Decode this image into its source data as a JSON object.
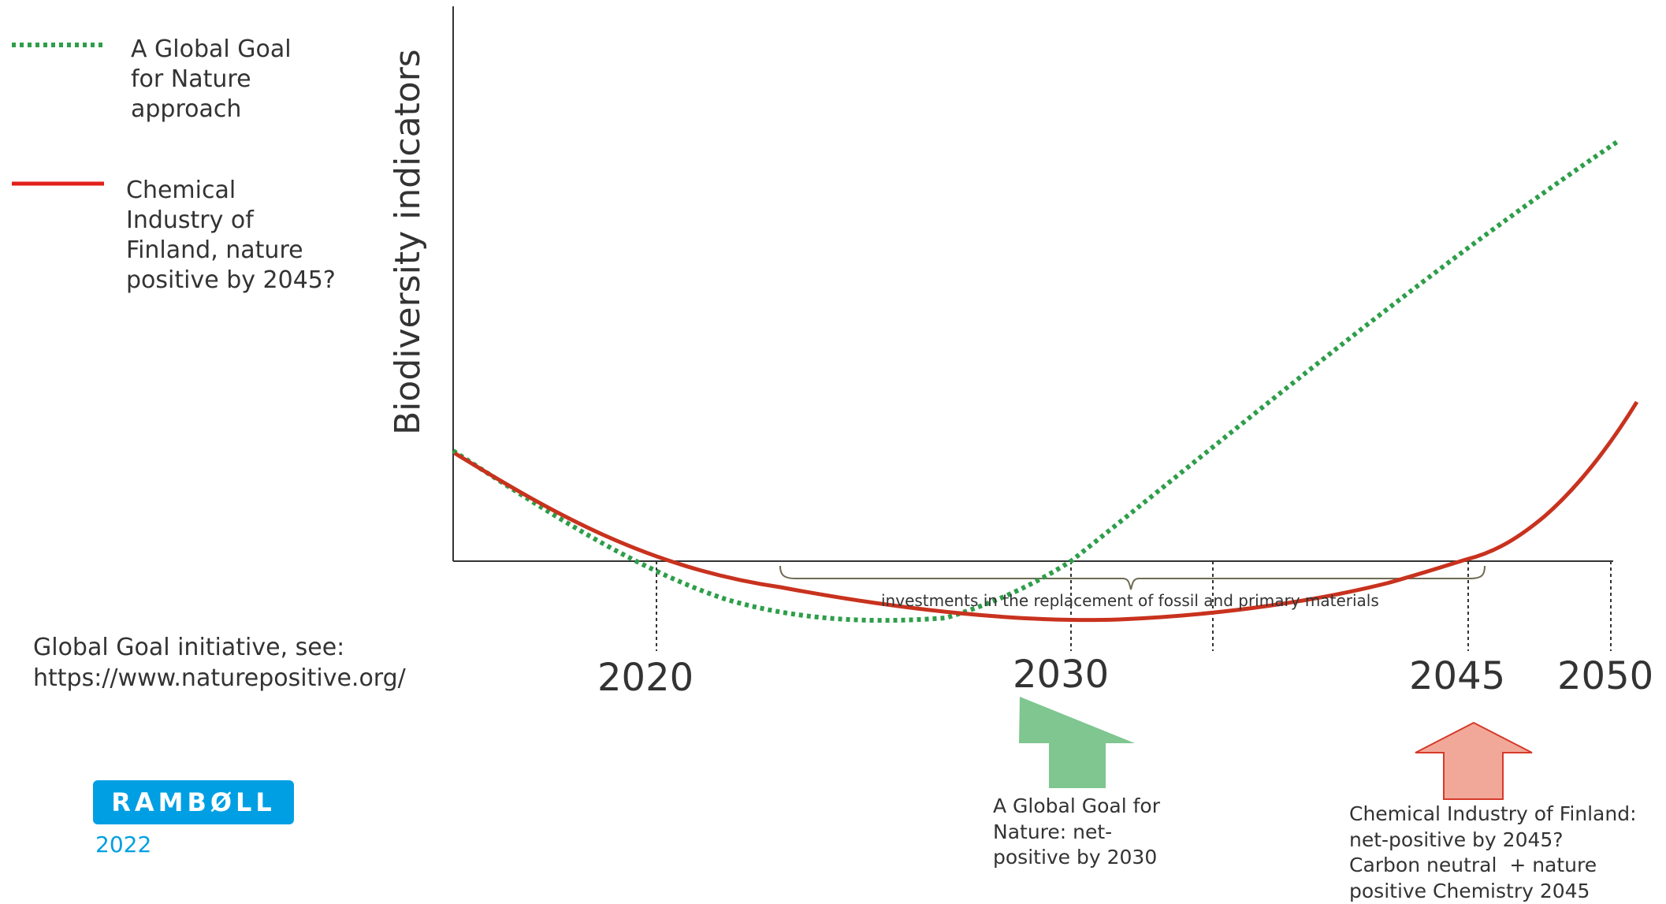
{
  "legend": {
    "green_label": "A Global Goal\nfor Nature\napproach",
    "red_label": "Chemical\nIndustry of\nFinland, nature\npositive by 2045?"
  },
  "y_axis_label": "Biodiversity indicators",
  "x_ticks": [
    "2020",
    "2030",
    "2045",
    "2050"
  ],
  "bracket_label": "investments in the replacement of fossil and primary materials",
  "source_note": "Global Goal initiative, see:\nhttps://www.naturepositive.org/",
  "logo_text": "RAMBØLL",
  "logo_year": "2022",
  "green_arrow_caption": "A Global Goal for\nNature: net-\npositive by 2030",
  "red_arrow_caption": "Chemical Industry of Finland:\nnet-positive by 2045?\nCarbon neutral  + nature\npositive Chemistry 2045",
  "colors": {
    "green_line": "#2e9e4a",
    "red_line": "#c8321e",
    "green_arrow": "#7fc690",
    "red_arrow_fill": "#f2a898",
    "red_arrow_stroke": "#d63a2a",
    "logo": "#009fe3"
  }
}
